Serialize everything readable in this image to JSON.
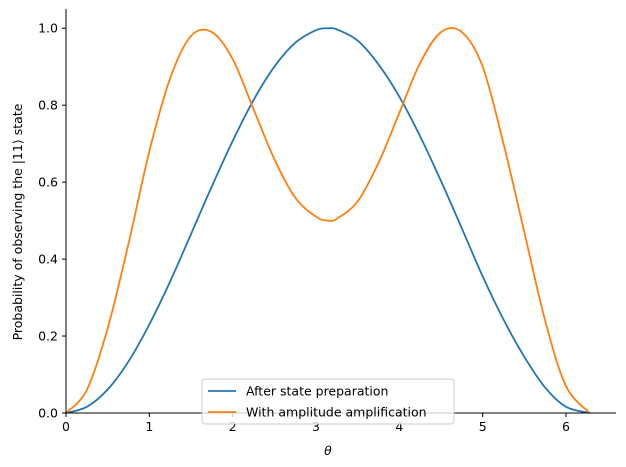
{
  "chart_data": {
    "type": "line",
    "title": "",
    "xlabel": "θ",
    "ylabel": "Probability of observing the |11⟩ state",
    "xlim": [
      0,
      6.6
    ],
    "ylim": [
      0,
      1.05
    ],
    "xticks": [
      0,
      1,
      2,
      3,
      4,
      5,
      6
    ],
    "yticks": [
      0.0,
      0.2,
      0.4,
      0.6,
      0.8,
      1.0
    ],
    "xtick_labels": [
      "0",
      "1",
      "2",
      "3",
      "4",
      "5",
      "6"
    ],
    "ytick_labels": [
      "0.0",
      "0.2",
      "0.4",
      "0.6",
      "0.8",
      "1.0"
    ],
    "grid": false,
    "legend": "lower-center",
    "series": [
      {
        "name": "After state preparation",
        "color": "#1f77b4",
        "x": [
          0,
          0.25,
          0.5,
          0.75,
          1.0,
          1.25,
          1.5,
          1.75,
          2.0,
          2.25,
          2.5,
          2.75,
          3.0,
          3.1416,
          3.25,
          3.5,
          3.75,
          4.0,
          4.25,
          4.5,
          4.75,
          5.0,
          5.25,
          5.5,
          5.75,
          6.0,
          6.2832
        ],
        "y": [
          0.0,
          0.016,
          0.061,
          0.134,
          0.23,
          0.342,
          0.465,
          0.589,
          0.707,
          0.813,
          0.9,
          0.962,
          0.995,
          1.0,
          0.997,
          0.968,
          0.906,
          0.822,
          0.719,
          0.603,
          0.48,
          0.355,
          0.243,
          0.146,
          0.066,
          0.016,
          0.0
        ]
      },
      {
        "name": "With amplitude amplification",
        "color": "#ff7f0e",
        "x": [
          0,
          0.25,
          0.5,
          0.75,
          1.0,
          1.25,
          1.5,
          1.75,
          2.0,
          2.25,
          2.5,
          2.75,
          3.0,
          3.1416,
          3.25,
          3.5,
          3.75,
          4.0,
          4.25,
          4.5,
          4.75,
          5.0,
          5.25,
          5.5,
          5.75,
          6.0,
          6.2832
        ],
        "y": [
          0.0,
          0.06,
          0.22,
          0.44,
          0.68,
          0.87,
          0.98,
          0.99,
          0.92,
          0.79,
          0.66,
          0.56,
          0.51,
          0.5,
          0.505,
          0.55,
          0.65,
          0.78,
          0.91,
          0.99,
          0.99,
          0.9,
          0.7,
          0.47,
          0.24,
          0.07,
          0.0
        ]
      }
    ]
  }
}
